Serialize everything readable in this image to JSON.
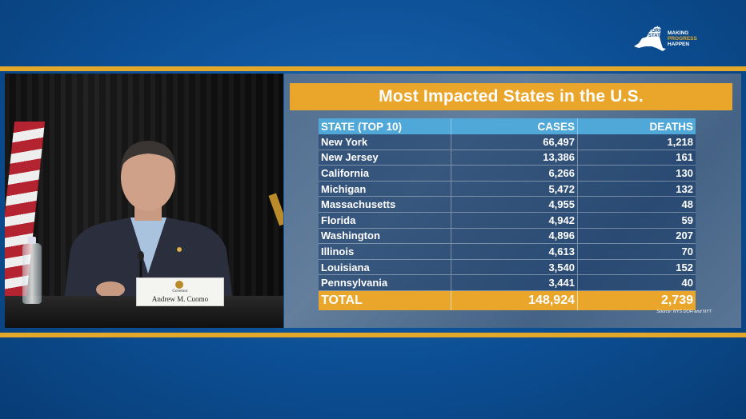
{
  "logo": {
    "state_lines": [
      "NEW",
      "YORK",
      "STATE"
    ],
    "tagline_line1": "MAKING",
    "tagline_line2": "PROGRESS",
    "tagline_line3": "HAPPEN"
  },
  "nameplate": {
    "title": "Governor",
    "name": "Andrew M. Cuomo"
  },
  "infographic": {
    "title": "Most Impacted States in the U.S.",
    "columns": [
      "STATE (TOP 10)",
      "CASES",
      "DEATHS"
    ],
    "rows": [
      {
        "state": "New York",
        "cases": "66,497",
        "deaths": "1,218"
      },
      {
        "state": "New Jersey",
        "cases": "13,386",
        "deaths": "161"
      },
      {
        "state": "California",
        "cases": "6,266",
        "deaths": "130"
      },
      {
        "state": "Michigan",
        "cases": "5,472",
        "deaths": "132"
      },
      {
        "state": "Massachusetts",
        "cases": "4,955",
        "deaths": "48"
      },
      {
        "state": "Florida",
        "cases": "4,942",
        "deaths": "59"
      },
      {
        "state": "Washington",
        "cases": "4,896",
        "deaths": "207"
      },
      {
        "state": "Illinois",
        "cases": "4,613",
        "deaths": "70"
      },
      {
        "state": "Louisiana",
        "cases": "3,540",
        "deaths": "152"
      },
      {
        "state": "Pennsylvania",
        "cases": "3,441",
        "deaths": "40"
      }
    ],
    "total": {
      "label": "TOTAL",
      "cases": "148,924",
      "deaths": "2,739"
    },
    "source": "Source: NYS DOH and NYT"
  },
  "colors": {
    "background": "#0c4f95",
    "accent_gold": "#e9a62b",
    "header_blue": "#4fa8d8"
  }
}
